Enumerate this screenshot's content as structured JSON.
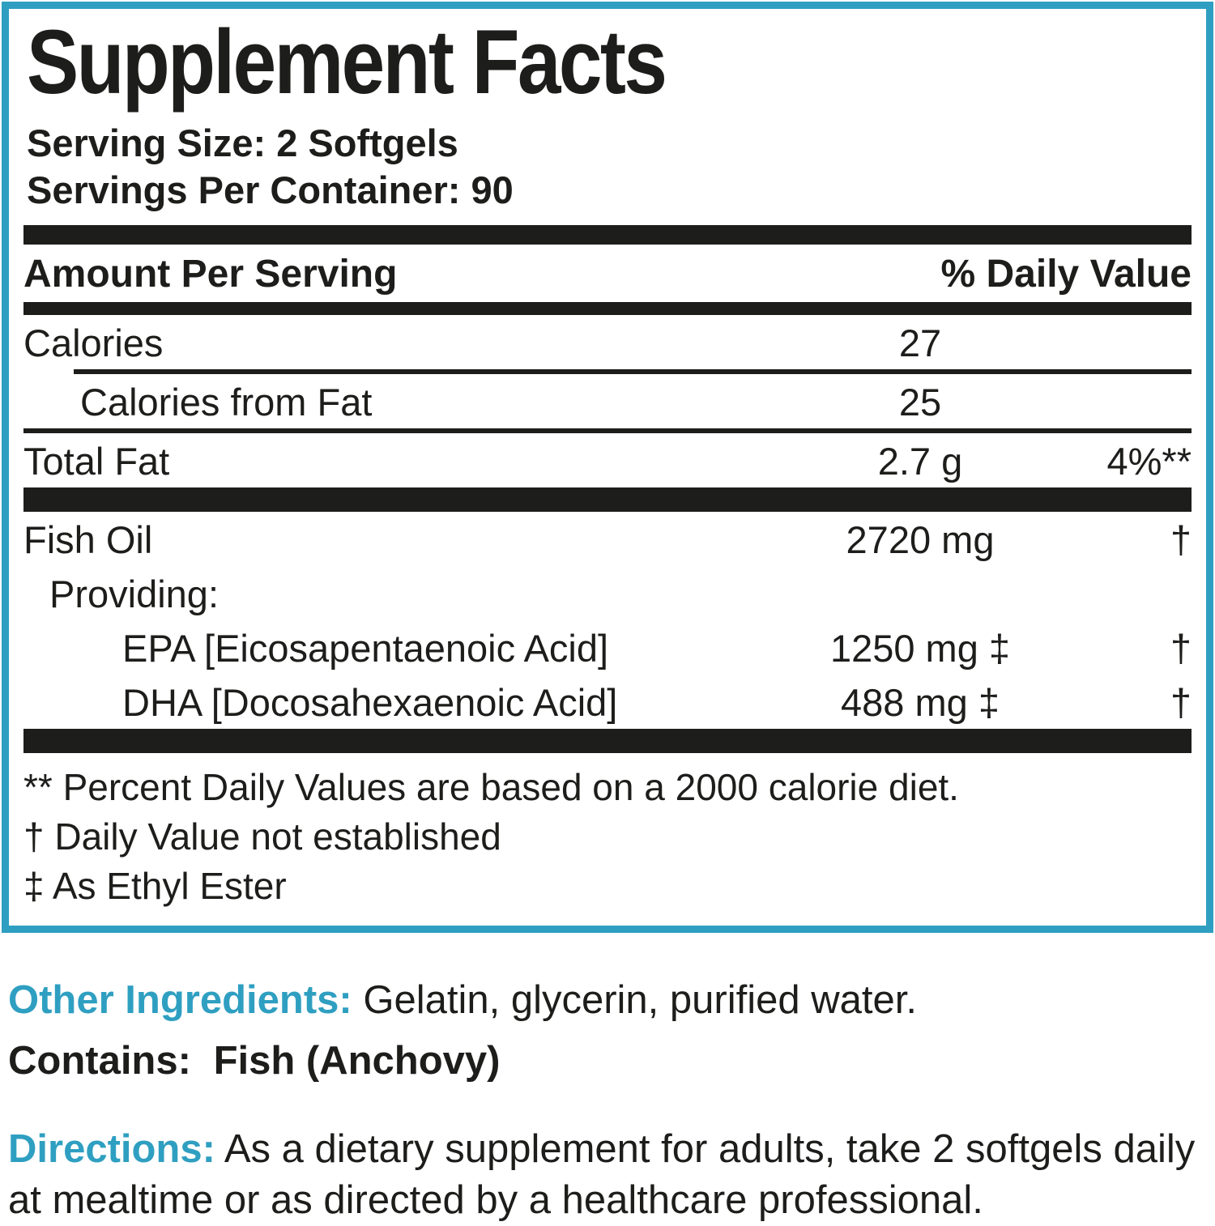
{
  "colors": {
    "accent_teal": "#2f9fc1",
    "ink": "#1d1d1b"
  },
  "supplement_panel": {
    "title": "Supplement Facts",
    "serving_size": "Serving Size: 2 Softgels",
    "servings_per_container": "Servings Per Container: 90",
    "column_headers": {
      "amount": "Amount Per Serving",
      "daily_value": "% Daily Value"
    },
    "rows": [
      {
        "name": "Calories",
        "amount": "27",
        "dv": ""
      },
      {
        "name": "Calories from Fat",
        "amount": "25",
        "dv": ""
      },
      {
        "name": "Total Fat",
        "amount": "2.7 g",
        "dv": "4%**"
      },
      {
        "name": "Fish Oil",
        "amount": "2720 mg",
        "dv": "†"
      },
      {
        "name": "Providing:",
        "amount": "",
        "dv": ""
      },
      {
        "name": "EPA [Eicosapentaenoic Acid]",
        "amount": "1250 mg ‡",
        "dv": "†"
      },
      {
        "name": "DHA [Docosahexaenoic Acid]",
        "amount": "488 mg ‡",
        "dv": "†"
      }
    ],
    "footnotes": [
      "** Percent Daily Values are based on a 2000 calorie diet.",
      "† Daily Value not established",
      "‡ As Ethyl Ester"
    ]
  },
  "other_ingredients": {
    "label": "Other Ingredients:",
    "text": "Gelatin, glycerin, purified water."
  },
  "contains": {
    "label": "Contains:",
    "text": "Fish (Anchovy)"
  },
  "directions": {
    "label": "Directions:",
    "text": "As a dietary supplement for adults, take 2 softgels daily at mealtime or as directed by a healthcare professional."
  }
}
